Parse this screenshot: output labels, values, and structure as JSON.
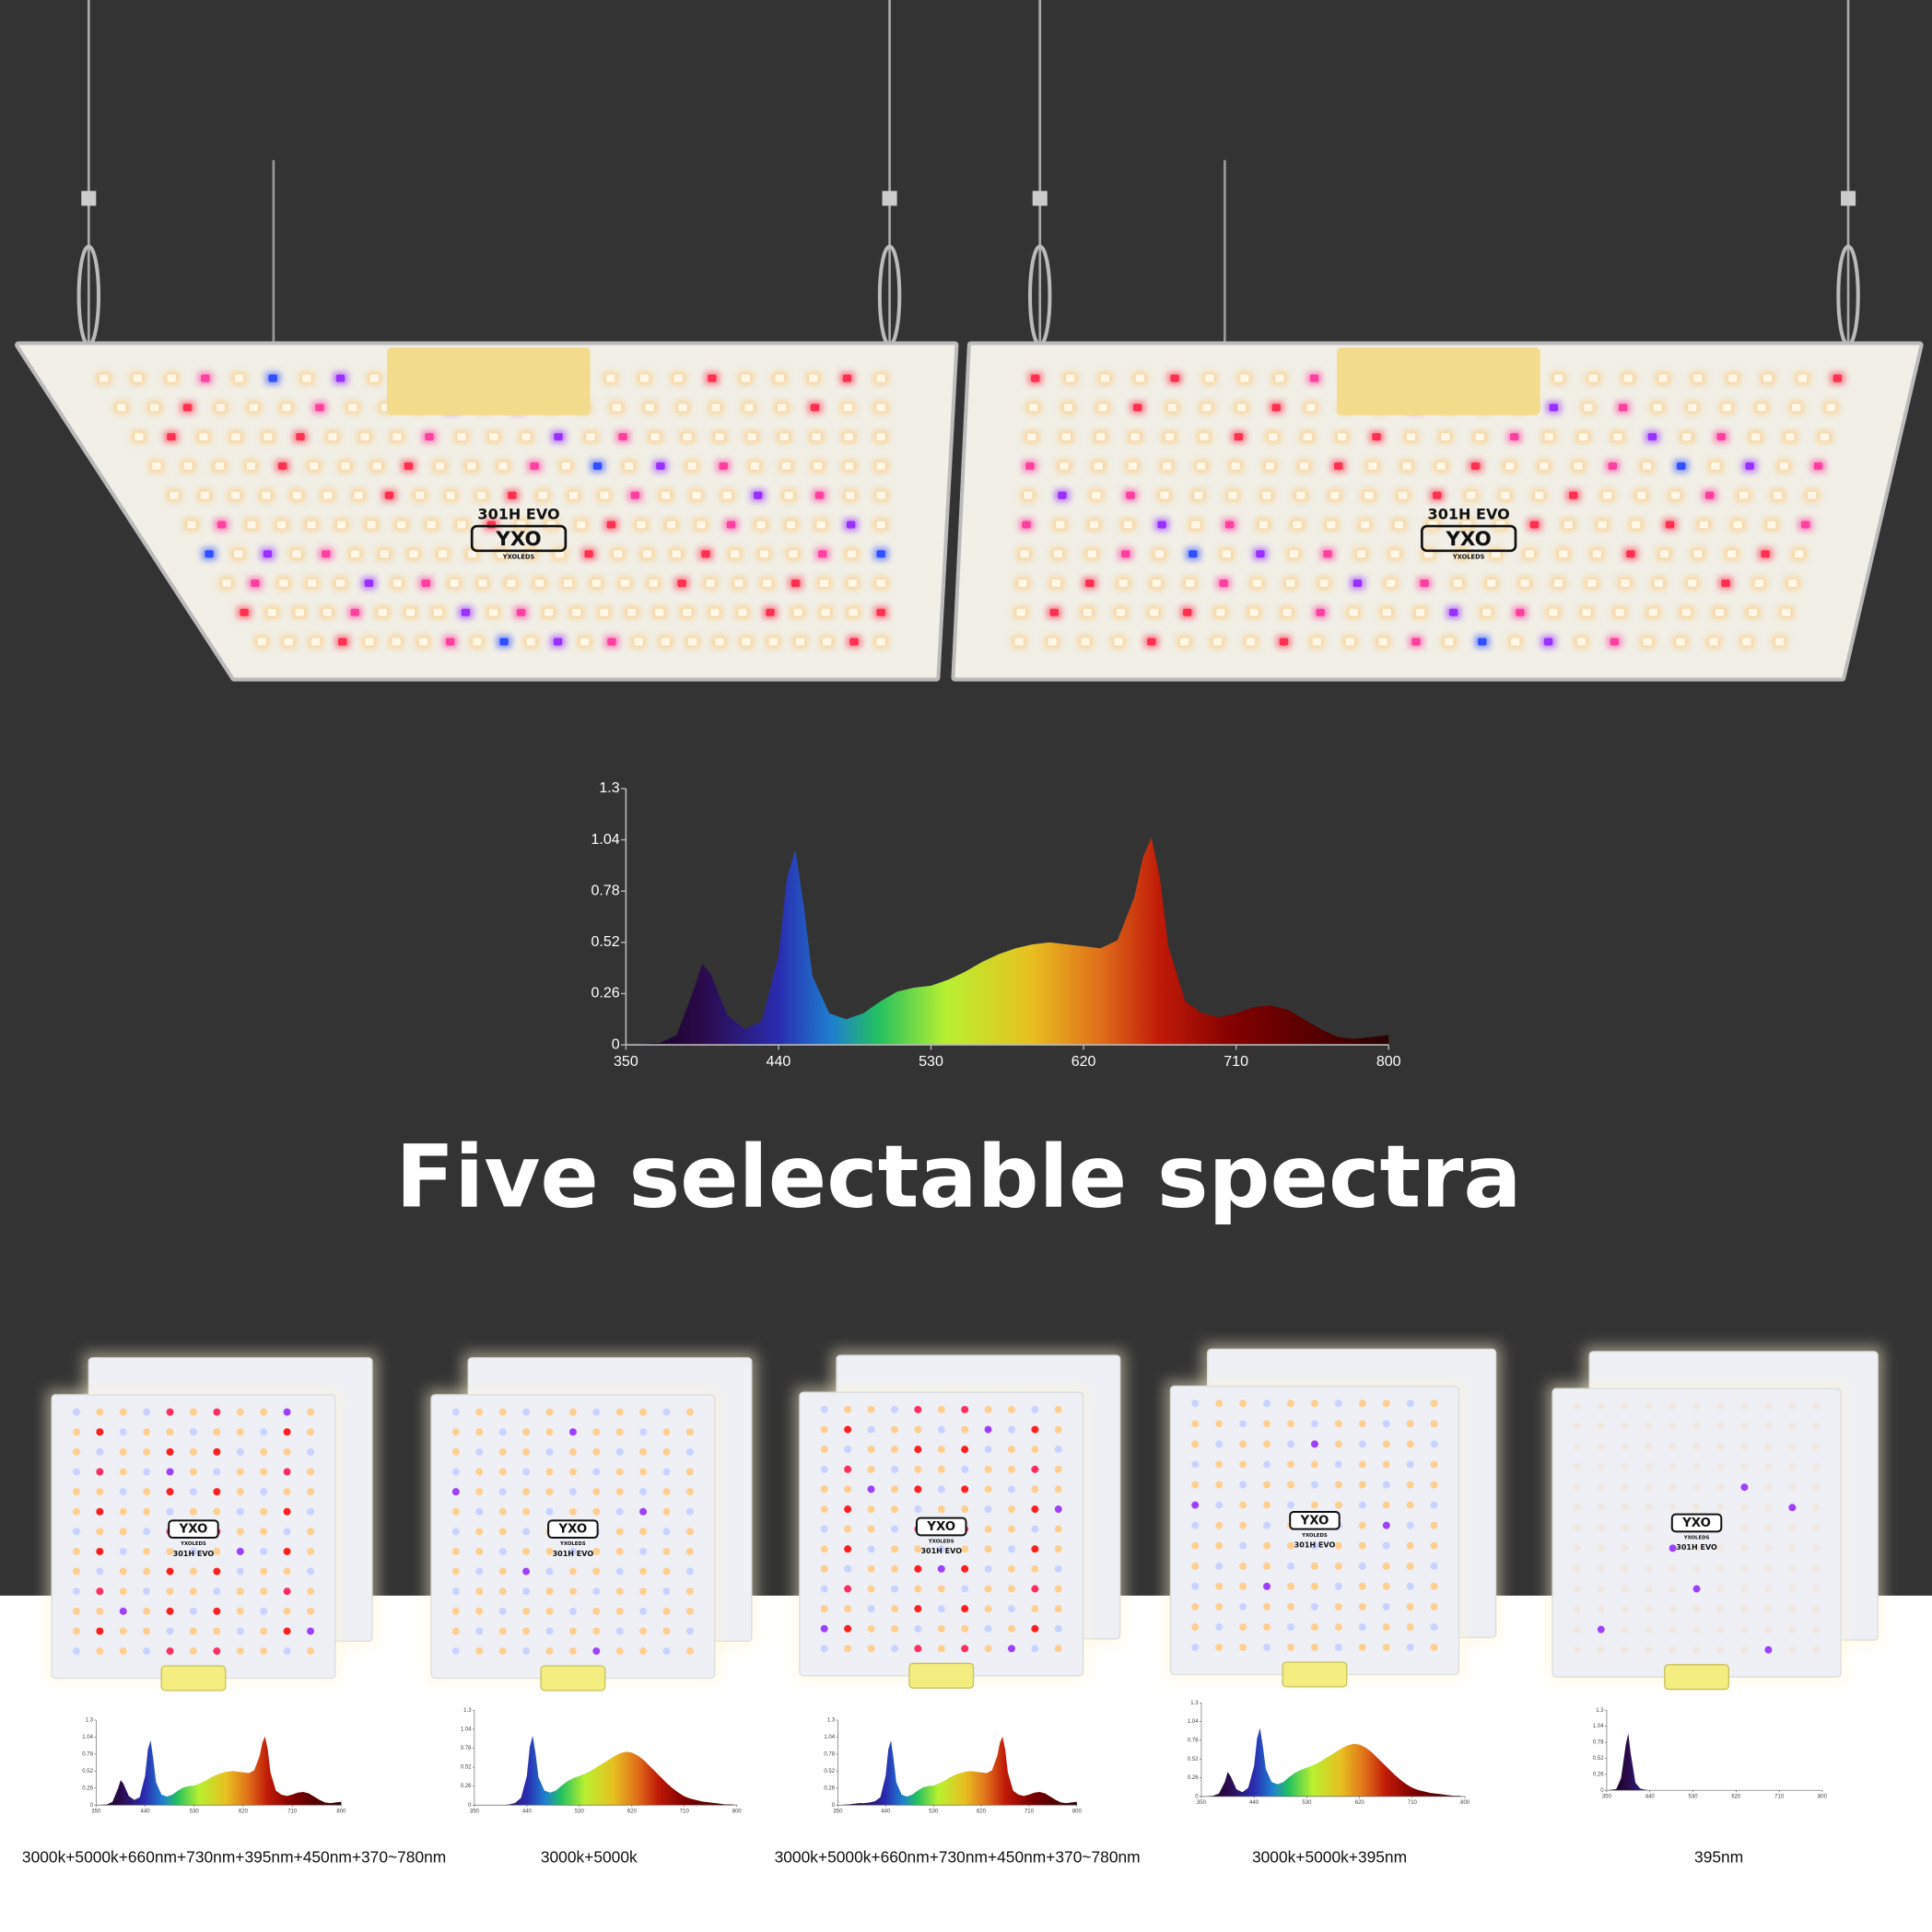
{
  "product": {
    "model": "301H EVO",
    "logo": "YXO",
    "maker": "YXOLEDS"
  },
  "headline": "Five selectable spectra",
  "chart_data": [
    {
      "type": "area",
      "x": [
        350,
        370,
        380,
        390,
        395,
        400,
        410,
        420,
        430,
        440,
        445,
        450,
        455,
        460,
        470,
        480,
        490,
        500,
        510,
        520,
        530,
        540,
        550,
        560,
        570,
        580,
        590,
        600,
        610,
        620,
        630,
        640,
        650,
        655,
        660,
        665,
        670,
        680,
        690,
        700,
        710,
        720,
        730,
        740,
        750,
        760,
        770,
        780,
        790,
        800
      ],
      "values": [
        0,
        0.01,
        0.05,
        0.28,
        0.41,
        0.36,
        0.15,
        0.08,
        0.12,
        0.45,
        0.85,
        0.99,
        0.7,
        0.35,
        0.16,
        0.13,
        0.16,
        0.22,
        0.27,
        0.29,
        0.3,
        0.33,
        0.37,
        0.42,
        0.46,
        0.49,
        0.51,
        0.52,
        0.51,
        0.5,
        0.49,
        0.53,
        0.75,
        0.95,
        1.05,
        0.85,
        0.5,
        0.22,
        0.16,
        0.14,
        0.16,
        0.19,
        0.2,
        0.18,
        0.13,
        0.08,
        0.04,
        0.03,
        0.04,
        0.05
      ],
      "xlim": [
        350,
        800
      ],
      "ylim": [
        0,
        1.3
      ],
      "xticks": [
        350,
        440,
        530,
        620,
        710,
        800
      ],
      "yticks": [
        0,
        0.26,
        0.52,
        0.78,
        1.04,
        1.3
      ]
    },
    {
      "type": "area",
      "title": "3000k+5000k+660nm+730nm+395nm+450nm+370~780nm",
      "x": [
        350,
        370,
        380,
        390,
        395,
        400,
        410,
        420,
        430,
        440,
        445,
        450,
        455,
        460,
        470,
        480,
        490,
        500,
        510,
        520,
        530,
        540,
        550,
        560,
        570,
        580,
        590,
        600,
        610,
        620,
        630,
        640,
        650,
        655,
        660,
        665,
        670,
        680,
        690,
        700,
        710,
        720,
        730,
        740,
        750,
        760,
        770,
        780,
        790,
        800
      ],
      "values": [
        0,
        0.01,
        0.05,
        0.25,
        0.38,
        0.33,
        0.14,
        0.08,
        0.12,
        0.45,
        0.85,
        0.99,
        0.7,
        0.35,
        0.16,
        0.13,
        0.16,
        0.22,
        0.27,
        0.29,
        0.3,
        0.33,
        0.37,
        0.42,
        0.46,
        0.49,
        0.51,
        0.52,
        0.51,
        0.5,
        0.49,
        0.53,
        0.75,
        0.95,
        1.05,
        0.85,
        0.5,
        0.22,
        0.16,
        0.14,
        0.16,
        0.19,
        0.2,
        0.18,
        0.13,
        0.08,
        0.04,
        0.03,
        0.04,
        0.05
      ],
      "xlim": [
        350,
        800
      ],
      "ylim": [
        0,
        1.3
      ],
      "xticks": [
        350,
        440,
        530,
        620,
        710,
        800
      ],
      "yticks": [
        0,
        0.26,
        0.52,
        0.78,
        1.04,
        1.3
      ]
    },
    {
      "type": "area",
      "title": "3000k+5000k",
      "x": [
        350,
        370,
        380,
        390,
        395,
        400,
        410,
        420,
        430,
        440,
        445,
        450,
        455,
        460,
        470,
        480,
        490,
        500,
        510,
        520,
        530,
        540,
        550,
        560,
        570,
        580,
        590,
        600,
        610,
        620,
        630,
        640,
        650,
        655,
        660,
        665,
        670,
        680,
        690,
        700,
        710,
        720,
        730,
        740,
        750,
        760,
        770,
        780,
        790,
        800
      ],
      "values": [
        0,
        0,
        0,
        0,
        0,
        0,
        0.01,
        0.03,
        0.1,
        0.4,
        0.8,
        0.95,
        0.7,
        0.38,
        0.2,
        0.17,
        0.2,
        0.27,
        0.33,
        0.37,
        0.4,
        0.43,
        0.47,
        0.52,
        0.57,
        0.62,
        0.67,
        0.71,
        0.73,
        0.72,
        0.68,
        0.62,
        0.54,
        0.5,
        0.46,
        0.42,
        0.38,
        0.3,
        0.23,
        0.17,
        0.12,
        0.09,
        0.07,
        0.05,
        0.04,
        0.03,
        0.02,
        0.01,
        0.01,
        0
      ],
      "xlim": [
        350,
        800
      ],
      "ylim": [
        0,
        1.3
      ],
      "xticks": [
        350,
        440,
        530,
        620,
        710,
        800
      ],
      "yticks": [
        0,
        0.26,
        0.52,
        0.78,
        1.04,
        1.3
      ]
    },
    {
      "type": "area",
      "title": "3000k+5000k+660nm+730nm+450nm+370~780nm",
      "x": [
        350,
        370,
        380,
        390,
        395,
        400,
        410,
        420,
        430,
        440,
        445,
        450,
        455,
        460,
        470,
        480,
        490,
        500,
        510,
        520,
        530,
        540,
        550,
        560,
        570,
        580,
        590,
        600,
        610,
        620,
        630,
        640,
        650,
        655,
        660,
        665,
        670,
        680,
        690,
        700,
        710,
        720,
        730,
        740,
        750,
        760,
        770,
        780,
        790,
        800
      ],
      "values": [
        0,
        0.01,
        0.02,
        0.03,
        0.03,
        0.03,
        0.04,
        0.06,
        0.12,
        0.45,
        0.85,
        0.99,
        0.7,
        0.35,
        0.16,
        0.13,
        0.16,
        0.22,
        0.27,
        0.29,
        0.3,
        0.33,
        0.37,
        0.42,
        0.46,
        0.49,
        0.51,
        0.52,
        0.51,
        0.5,
        0.49,
        0.53,
        0.75,
        0.95,
        1.05,
        0.85,
        0.5,
        0.22,
        0.16,
        0.14,
        0.16,
        0.19,
        0.2,
        0.18,
        0.13,
        0.08,
        0.04,
        0.03,
        0.04,
        0.05
      ],
      "xlim": [
        350,
        800
      ],
      "ylim": [
        0,
        1.3
      ],
      "xticks": [
        350,
        440,
        530,
        620,
        710,
        800
      ],
      "yticks": [
        0,
        0.26,
        0.52,
        0.78,
        1.04,
        1.3
      ]
    },
    {
      "type": "area",
      "title": "3000k+5000k+395nm",
      "x": [
        350,
        370,
        380,
        390,
        395,
        400,
        410,
        420,
        430,
        440,
        445,
        450,
        455,
        460,
        470,
        480,
        490,
        500,
        510,
        520,
        530,
        540,
        550,
        560,
        570,
        580,
        590,
        600,
        610,
        620,
        630,
        640,
        650,
        655,
        660,
        665,
        670,
        680,
        690,
        700,
        710,
        720,
        730,
        740,
        750,
        760,
        770,
        780,
        790,
        800
      ],
      "values": [
        0,
        0.01,
        0.04,
        0.2,
        0.34,
        0.28,
        0.1,
        0.06,
        0.12,
        0.42,
        0.8,
        0.95,
        0.7,
        0.38,
        0.2,
        0.17,
        0.2,
        0.27,
        0.33,
        0.37,
        0.4,
        0.43,
        0.47,
        0.52,
        0.57,
        0.62,
        0.67,
        0.71,
        0.73,
        0.72,
        0.68,
        0.62,
        0.54,
        0.5,
        0.46,
        0.42,
        0.38,
        0.3,
        0.23,
        0.17,
        0.12,
        0.09,
        0.07,
        0.05,
        0.04,
        0.03,
        0.02,
        0.01,
        0.01,
        0
      ],
      "xlim": [
        350,
        800
      ],
      "ylim": [
        0,
        1.3
      ],
      "xticks": [
        350,
        440,
        530,
        620,
        710,
        800
      ],
      "yticks": [
        0,
        0.26,
        0.52,
        0.78,
        1.04,
        1.3
      ]
    },
    {
      "type": "area",
      "title": "395nm",
      "x": [
        350,
        370,
        380,
        390,
        395,
        400,
        410,
        420,
        430,
        440,
        445,
        450,
        455,
        460,
        470,
        480,
        490,
        500,
        510,
        520,
        530,
        540,
        550,
        560,
        570,
        580,
        590,
        600,
        610,
        620,
        630,
        640,
        650,
        655,
        660,
        665,
        670,
        680,
        690,
        700,
        710,
        720,
        730,
        740,
        750,
        760,
        770,
        780,
        790,
        800
      ],
      "values": [
        0,
        0.02,
        0.2,
        0.75,
        0.92,
        0.6,
        0.12,
        0.03,
        0.01,
        0,
        0,
        0,
        0,
        0,
        0,
        0,
        0,
        0,
        0,
        0,
        0,
        0,
        0,
        0,
        0,
        0,
        0,
        0,
        0,
        0,
        0,
        0,
        0,
        0,
        0,
        0,
        0,
        0,
        0,
        0,
        0,
        0,
        0,
        0,
        0,
        0,
        0,
        0,
        0,
        0
      ],
      "xlim": [
        350,
        800
      ],
      "ylim": [
        0,
        1.3
      ],
      "xticks": [
        350,
        440,
        530,
        620,
        710,
        800
      ],
      "yticks": [
        0,
        0.26,
        0.52,
        0.78,
        1.04,
        1.3
      ]
    }
  ]
}
